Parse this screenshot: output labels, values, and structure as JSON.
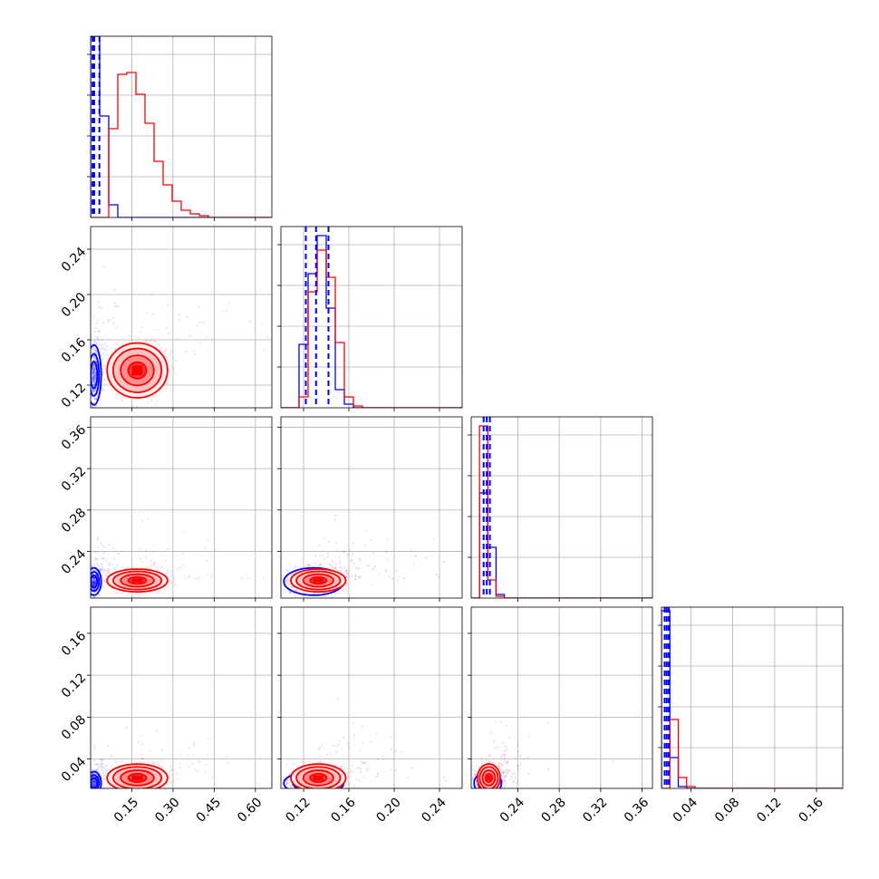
{
  "chart_data": {
    "type": "corner",
    "title": "",
    "dimensions": 4,
    "series": [
      {
        "color": "#0000ff"
      },
      {
        "color": "#ff0000"
      }
    ],
    "grid": true,
    "axes": [
      {
        "range": [
          0.0,
          0.66
        ],
        "ticks": [
          0.15,
          0.3,
          0.45,
          0.6
        ],
        "tick_labels": [
          "0.15",
          "0.30",
          "0.45",
          "0.60"
        ]
      },
      {
        "range": [
          0.1,
          0.26
        ],
        "ticks": [
          0.12,
          0.16,
          0.2,
          0.24
        ],
        "tick_labels": [
          "0.12",
          "0.16",
          "0.20",
          "0.24"
        ]
      },
      {
        "range": [
          0.195,
          0.37
        ],
        "ticks": [
          0.24,
          0.28,
          0.32,
          0.36
        ],
        "tick_labels": [
          "0.24",
          "0.28",
          "0.32",
          "0.36"
        ]
      },
      {
        "range": [
          0.012,
          0.185
        ],
        "ticks": [
          0.04,
          0.08,
          0.12,
          0.16
        ],
        "tick_labels": [
          "0.04",
          "0.08",
          "0.12",
          "0.16"
        ]
      }
    ],
    "histograms": [
      {
        "bins": [
          0.0,
          0.033,
          0.066,
          0.099,
          0.132,
          0.165,
          0.198,
          0.231,
          0.264,
          0.297,
          0.33,
          0.363,
          0.396,
          0.429,
          0.462,
          0.495,
          0.528,
          0.561,
          0.594,
          0.627,
          0.66
        ],
        "counts": [
          [
            1.0,
            0.56,
            0.07,
            0.0,
            0.0,
            0.0,
            0.0,
            0.0,
            0.0,
            0.0,
            0.0,
            0.0,
            0.0,
            0.0,
            0.0,
            0.0,
            0.0,
            0.0,
            0.0,
            0.0
          ],
          [
            0.0,
            0.0,
            0.49,
            0.79,
            0.8,
            0.68,
            0.52,
            0.31,
            0.18,
            0.09,
            0.04,
            0.02,
            0.01,
            0.0,
            0.0,
            0.0,
            0.0,
            0.0,
            0.0,
            0.0
          ]
        ],
        "quantiles": [
          [
            0.007,
            0.013,
            0.032
          ],
          []
        ]
      },
      {
        "bins": [
          0.1,
          0.108,
          0.116,
          0.124,
          0.132,
          0.14,
          0.148,
          0.156,
          0.164,
          0.172,
          0.18,
          0.188,
          0.196,
          0.204,
          0.212,
          0.22,
          0.228,
          0.236,
          0.244,
          0.252,
          0.26
        ],
        "counts": [
          [
            0.0,
            0.0,
            0.35,
            0.74,
            0.95,
            0.55,
            0.1,
            0.02,
            0.0,
            0.0,
            0.0,
            0.0,
            0.0,
            0.0,
            0.0,
            0.0,
            0.0,
            0.0,
            0.0,
            0.0
          ],
          [
            0.0,
            0.0,
            0.06,
            0.64,
            0.87,
            0.72,
            0.36,
            0.06,
            0.01,
            0.0,
            0.0,
            0.0,
            0.0,
            0.0,
            0.0,
            0.0,
            0.0,
            0.0,
            0.0,
            0.0
          ]
        ],
        "quantiles": [
          [
            0.122,
            0.131,
            0.142
          ],
          []
        ]
      },
      {
        "bins": [
          0.195,
          0.203,
          0.211,
          0.219,
          0.227,
          0.235,
          0.243,
          0.251,
          0.259,
          0.267,
          0.275,
          0.283,
          0.291,
          0.299,
          0.307,
          0.315,
          0.323,
          0.331,
          0.339,
          0.347,
          0.355,
          0.363,
          0.371
        ],
        "counts": [
          [
            0.0,
            0.58,
            0.28,
            0.02,
            0.0,
            0.0,
            0.0,
            0.0,
            0.0,
            0.0,
            0.0,
            0.0,
            0.0,
            0.0,
            0.0,
            0.0,
            0.0,
            0.0,
            0.0,
            0.0,
            0.0,
            0.0
          ],
          [
            0.0,
            0.95,
            0.1,
            0.01,
            0.0,
            0.0,
            0.0,
            0.0,
            0.0,
            0.0,
            0.0,
            0.0,
            0.0,
            0.0,
            0.0,
            0.0,
            0.0,
            0.0,
            0.0,
            0.0,
            0.0,
            0.0
          ]
        ],
        "quantiles": [
          [
            0.207,
            0.21,
            0.213
          ],
          []
        ]
      },
      {
        "bins": [
          0.012,
          0.02,
          0.028,
          0.036,
          0.044,
          0.052,
          0.06,
          0.068,
          0.076,
          0.084,
          0.092,
          0.1,
          0.108,
          0.116,
          0.124,
          0.132,
          0.14,
          0.148,
          0.156,
          0.164,
          0.172,
          0.18,
          0.188
        ],
        "counts": [
          [
            0.98,
            0.17,
            0.01,
            0.0,
            0.0,
            0.0,
            0.0,
            0.0,
            0.0,
            0.0,
            0.0,
            0.0,
            0.0,
            0.0,
            0.0,
            0.0,
            0.0,
            0.0,
            0.0,
            0.0,
            0.0,
            0.0
          ],
          [
            0.0,
            0.38,
            0.06,
            0.01,
            0.0,
            0.0,
            0.0,
            0.0,
            0.0,
            0.0,
            0.0,
            0.0,
            0.0,
            0.0,
            0.0,
            0.0,
            0.0,
            0.0,
            0.0,
            0.0,
            0.0,
            0.0
          ]
        ],
        "quantiles": [
          [
            0.015,
            0.017,
            0.019
          ],
          []
        ]
      }
    ],
    "distributions": [
      {
        "center": [
          0.012,
          0.129,
          0.211,
          0.017
        ],
        "spread": [
          0.012,
          0.012,
          0.006,
          0.005
        ]
      },
      {
        "center": [
          0.17,
          0.133,
          0.212,
          0.022
        ],
        "spread": [
          0.05,
          0.011,
          0.005,
          0.006
        ]
      }
    ]
  }
}
